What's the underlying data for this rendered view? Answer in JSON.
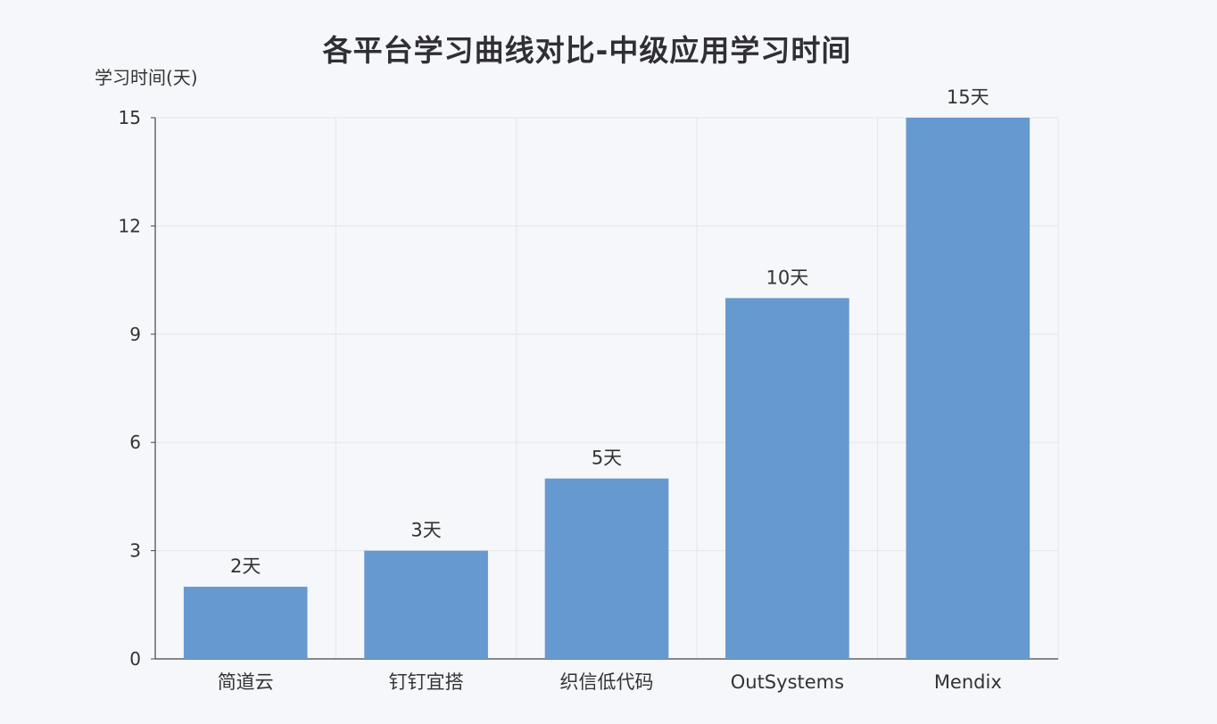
{
  "chart_data": {
    "type": "bar",
    "title": "各平台学习曲线对比-中级应用学习时间",
    "ylabel": "学习时间(天)",
    "xlabel": "",
    "categories": [
      "简道云",
      "钉钉宜搭",
      "织信低代码",
      "OutSystems",
      "Mendix"
    ],
    "values": [
      2,
      3,
      5,
      10,
      15
    ],
    "data_labels": [
      "2天",
      "3天",
      "5天",
      "10天",
      "15天"
    ],
    "ylim": [
      0,
      15
    ],
    "yticks": [
      0,
      3,
      6,
      9,
      12,
      15
    ],
    "grid": true,
    "legend": "none",
    "bar_color": "#6699cf"
  }
}
